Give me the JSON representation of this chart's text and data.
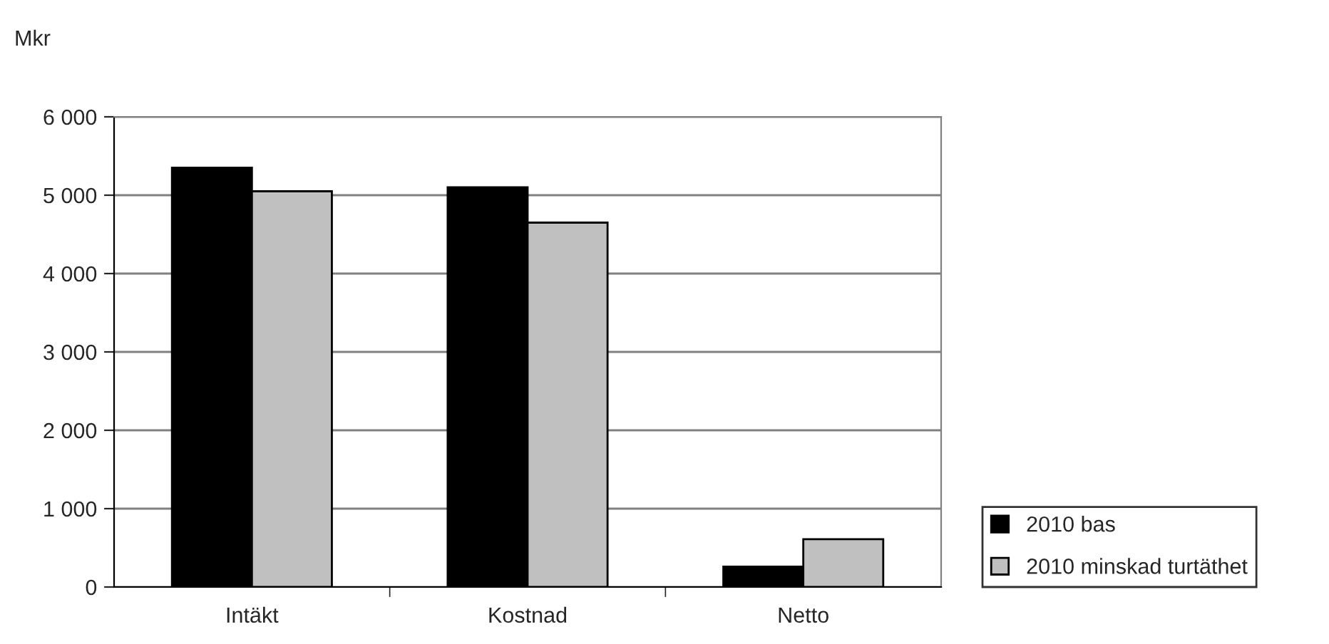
{
  "chart_data": {
    "type": "bar",
    "ylabel": "Mkr",
    "categories": [
      "Intäkt",
      "Kostnad",
      "Netto"
    ],
    "series": [
      {
        "name": "2010 bas",
        "color": "#000000",
        "values": [
          5350,
          5100,
          260
        ]
      },
      {
        "name": "2010 minskad turtäthet",
        "color": "#c0c0c0",
        "values": [
          5050,
          4650,
          610
        ]
      }
    ],
    "ylim": [
      0,
      6000
    ],
    "yticks": [
      {
        "value": 0,
        "label": "0"
      },
      {
        "value": 1000,
        "label": "1 000"
      },
      {
        "value": 2000,
        "label": "2 000"
      },
      {
        "value": 3000,
        "label": "3 000"
      },
      {
        "value": 4000,
        "label": "4 000"
      },
      {
        "value": 5000,
        "label": "5 000"
      },
      {
        "value": 6000,
        "label": "6 000"
      }
    ],
    "grid": "y",
    "legend": "bottom right"
  }
}
